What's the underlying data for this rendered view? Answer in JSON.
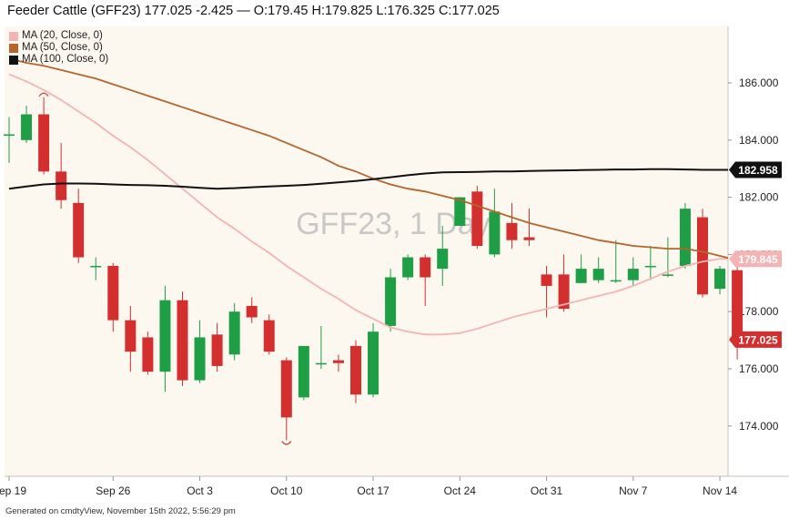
{
  "title": "Feeder Cattle (GFF23) 177.025 -2.425 — O:179.45 H:179.825 L:176.325 C:177.025",
  "footer": "Generated on cmdtyView, November 15th 2022, 5:56:29 pm",
  "watermark": "GFF23, 1 Day",
  "colors": {
    "up": "#1e9e45",
    "down": "#d32f2f",
    "ma20": "#f4b4b4",
    "ma50": "#b5652d",
    "ma100": "#111111",
    "plot_bg": "#fcf7ef"
  },
  "legend": [
    {
      "label": "MA (20, Close, 0)",
      "color": "#f4b4b4"
    },
    {
      "label": "MA (50, Close, 0)",
      "color": "#b5652d"
    },
    {
      "label": "MA (100, Close, 0)",
      "color": "#111111"
    }
  ],
  "chart_data": {
    "type": "candlestick",
    "ylim": [
      172.5,
      187.0
    ],
    "y_ticks": [
      "186.000",
      "184.000",
      "182.000",
      "180.000",
      "178.000",
      "176.000",
      "174.000"
    ],
    "x_ticks": [
      {
        "label": "Sep 19",
        "index": 0
      },
      {
        "label": "Sep 26",
        "index": 6
      },
      {
        "label": "Oct 3",
        "index": 11
      },
      {
        "label": "Oct 10",
        "index": 16
      },
      {
        "label": "Oct 17",
        "index": 21
      },
      {
        "label": "Oct 24",
        "index": 26
      },
      {
        "label": "Oct 31",
        "index": 31
      },
      {
        "label": "Nov 7",
        "index": 36
      },
      {
        "label": "Nov 14",
        "index": 41
      }
    ],
    "candles": [
      {
        "o": 184.2,
        "h": 184.8,
        "l": 183.2,
        "c": 184.2
      },
      {
        "o": 184.0,
        "h": 185.2,
        "l": 183.9,
        "c": 184.9
      },
      {
        "o": 184.9,
        "h": 185.5,
        "l": 182.8,
        "c": 182.9
      },
      {
        "o": 182.9,
        "h": 183.9,
        "l": 181.6,
        "c": 181.9
      },
      {
        "o": 181.8,
        "h": 182.3,
        "l": 179.7,
        "c": 179.9
      },
      {
        "o": 179.6,
        "h": 179.9,
        "l": 179.1,
        "c": 179.6
      },
      {
        "o": 179.6,
        "h": 179.7,
        "l": 177.3,
        "c": 177.7
      },
      {
        "o": 177.7,
        "h": 178.2,
        "l": 175.9,
        "c": 176.6
      },
      {
        "o": 177.1,
        "h": 177.3,
        "l": 175.8,
        "c": 175.9
      },
      {
        "o": 175.9,
        "h": 178.9,
        "l": 175.2,
        "c": 178.4
      },
      {
        "o": 178.4,
        "h": 178.7,
        "l": 175.4,
        "c": 175.6
      },
      {
        "o": 175.6,
        "h": 177.7,
        "l": 175.5,
        "c": 177.1
      },
      {
        "o": 177.2,
        "h": 177.6,
        "l": 175.9,
        "c": 176.1
      },
      {
        "o": 176.5,
        "h": 178.3,
        "l": 176.3,
        "c": 178.0
      },
      {
        "o": 178.2,
        "h": 178.5,
        "l": 177.6,
        "c": 177.8
      },
      {
        "o": 177.7,
        "h": 177.9,
        "l": 176.5,
        "c": 176.6
      },
      {
        "o": 176.3,
        "h": 176.4,
        "l": 173.5,
        "c": 174.3
      },
      {
        "o": 175.0,
        "h": 176.8,
        "l": 174.9,
        "c": 176.8
      },
      {
        "o": 176.2,
        "h": 177.5,
        "l": 176.0,
        "c": 176.2
      },
      {
        "o": 176.3,
        "h": 176.5,
        "l": 175.9,
        "c": 176.2
      },
      {
        "o": 176.8,
        "h": 177.0,
        "l": 174.8,
        "c": 175.1
      },
      {
        "o": 175.1,
        "h": 177.6,
        "l": 175.0,
        "c": 177.3
      },
      {
        "o": 177.5,
        "h": 179.5,
        "l": 177.3,
        "c": 179.2
      },
      {
        "o": 179.2,
        "h": 180.0,
        "l": 179.1,
        "c": 179.9
      },
      {
        "o": 179.9,
        "h": 180.0,
        "l": 178.2,
        "c": 179.2
      },
      {
        "o": 179.5,
        "h": 181.0,
        "l": 178.9,
        "c": 180.2
      },
      {
        "o": 181.0,
        "h": 182.0,
        "l": 181.0,
        "c": 182.0
      },
      {
        "o": 182.2,
        "h": 182.4,
        "l": 180.2,
        "c": 180.3
      },
      {
        "o": 180.0,
        "h": 182.3,
        "l": 179.9,
        "c": 181.5
      },
      {
        "o": 181.1,
        "h": 181.8,
        "l": 180.2,
        "c": 180.5
      },
      {
        "o": 180.6,
        "h": 181.6,
        "l": 180.3,
        "c": 180.5
      },
      {
        "o": 179.3,
        "h": 179.6,
        "l": 177.8,
        "c": 178.9
      },
      {
        "o": 179.3,
        "h": 180.0,
        "l": 178.0,
        "c": 178.1
      },
      {
        "o": 179.0,
        "h": 180.0,
        "l": 179.0,
        "c": 179.5
      },
      {
        "o": 179.1,
        "h": 179.9,
        "l": 179.0,
        "c": 179.5
      },
      {
        "o": 179.1,
        "h": 180.5,
        "l": 179.0,
        "c": 179.1
      },
      {
        "o": 179.1,
        "h": 179.9,
        "l": 178.9,
        "c": 179.5
      },
      {
        "o": 179.6,
        "h": 180.3,
        "l": 179.1,
        "c": 179.6
      },
      {
        "o": 179.3,
        "h": 180.6,
        "l": 179.2,
        "c": 179.3
      },
      {
        "o": 179.6,
        "h": 181.8,
        "l": 179.5,
        "c": 181.6
      },
      {
        "o": 181.3,
        "h": 181.6,
        "l": 178.5,
        "c": 178.6
      },
      {
        "o": 178.8,
        "h": 179.6,
        "l": 178.6,
        "c": 179.5
      },
      {
        "o": 179.45,
        "h": 179.825,
        "l": 176.325,
        "c": 177.025
      }
    ],
    "series": [
      {
        "name": "MA (20, Close, 0)",
        "values": [
          186.3,
          186.05,
          185.75,
          185.4,
          185.0,
          184.6,
          184.15,
          183.75,
          183.3,
          182.8,
          182.3,
          181.8,
          181.3,
          180.9,
          180.45,
          180.05,
          179.6,
          179.2,
          178.8,
          178.45,
          178.05,
          177.75,
          177.45,
          177.3,
          177.2,
          177.2,
          177.25,
          177.4,
          177.6,
          177.8,
          177.95,
          178.1,
          178.25,
          178.4,
          178.55,
          178.7,
          178.9,
          179.15,
          179.4,
          179.6,
          179.75,
          179.85,
          179.845
        ]
      },
      {
        "name": "MA (50, Close, 0)",
        "values": [
          186.85,
          186.7,
          186.6,
          186.45,
          186.3,
          186.15,
          185.95,
          185.75,
          185.55,
          185.35,
          185.15,
          184.95,
          184.75,
          184.55,
          184.35,
          184.15,
          183.9,
          183.65,
          183.4,
          183.1,
          182.9,
          182.65,
          182.45,
          182.3,
          182.2,
          182.05,
          181.9,
          181.7,
          181.5,
          181.3,
          181.1,
          180.95,
          180.8,
          180.65,
          180.5,
          180.4,
          180.3,
          180.25,
          180.2,
          180.2,
          180.1,
          179.95,
          179.8
        ]
      },
      {
        "name": "MA (100, Close, 0)",
        "values": [
          182.3,
          182.38,
          182.45,
          182.48,
          182.48,
          182.47,
          182.45,
          182.43,
          182.42,
          182.4,
          182.37,
          182.33,
          182.3,
          182.32,
          182.35,
          182.38,
          182.4,
          182.43,
          182.47,
          182.52,
          182.57,
          182.63,
          182.7,
          182.77,
          182.83,
          182.87,
          182.88,
          182.89,
          182.9,
          182.9,
          182.92,
          182.93,
          182.94,
          182.95,
          182.96,
          182.97,
          182.97,
          182.98,
          182.98,
          182.97,
          182.96,
          182.96,
          182.958
        ]
      }
    ],
    "price_labels": [
      {
        "text": "182.958",
        "value": 182.958,
        "bg": "#111111",
        "fg": "#ffffff"
      },
      {
        "text": "179.845",
        "value": 179.845,
        "bg": "#f4b4b4",
        "fg": "#ffffff"
      },
      {
        "text": "177.025",
        "value": 177.025,
        "bg": "#d32f2f",
        "fg": "#ffffff"
      }
    ],
    "markers": [
      {
        "index": 2,
        "at": "high"
      },
      {
        "index": 16,
        "at": "low"
      }
    ]
  }
}
